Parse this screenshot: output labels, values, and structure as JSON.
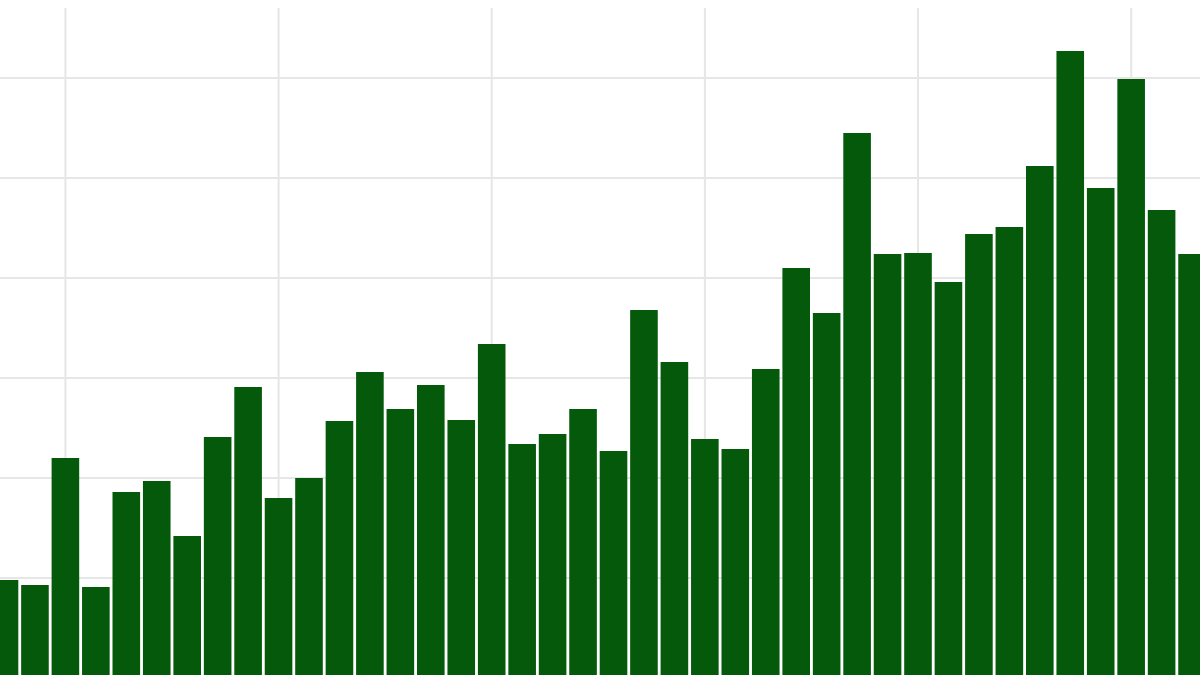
{
  "chart_data": {
    "type": "bar",
    "categories": [
      null,
      null,
      null,
      null,
      null,
      null,
      null,
      null,
      null,
      null,
      null,
      null,
      null,
      null,
      null,
      null,
      null,
      null,
      null,
      null,
      null,
      null,
      null,
      null,
      null,
      null,
      null,
      null,
      null,
      null,
      null,
      null,
      null,
      null,
      null,
      null,
      null,
      null,
      null,
      null
    ],
    "values": [
      0.98,
      0.93,
      2.2,
      0.91,
      1.86,
      1.97,
      1.42,
      2.41,
      2.91,
      1.8,
      2.0,
      2.57,
      3.06,
      2.69,
      2.93,
      2.58,
      3.34,
      2.34,
      2.44,
      2.69,
      2.27,
      3.68,
      3.16,
      2.39,
      2.29,
      3.09,
      4.1,
      3.65,
      5.45,
      4.24,
      4.25,
      3.96,
      4.44,
      4.51,
      5.12,
      6.27,
      4.9,
      5.99,
      4.68,
      4.24
    ],
    "color": "#04590a",
    "ylim": [
      0,
      6.78
    ],
    "yticks": [
      1,
      2,
      3,
      4,
      5,
      6
    ],
    "grid": true
  }
}
